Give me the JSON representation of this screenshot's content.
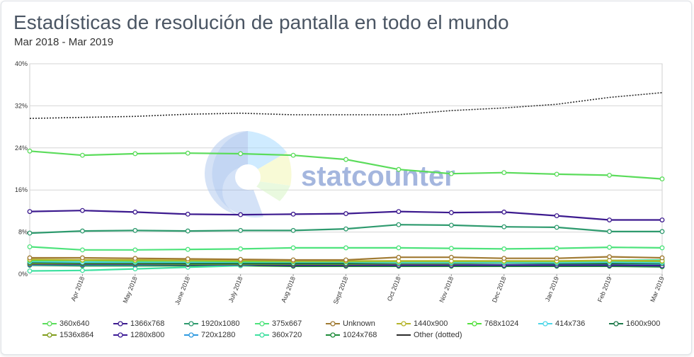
{
  "title": "Estadísticas de resolución de pantalla en todo el mundo",
  "subtitle": "Mar 2018 - Mar 2019",
  "watermark": "statcounter",
  "chart_data": {
    "type": "line",
    "categories": [
      "Mar 2018",
      "Apr 2018",
      "May 2018",
      "June 2018",
      "July 2018",
      "Aug 2018",
      "Sept 2018",
      "Oct 2018",
      "Nov 2018",
      "Dec 2018",
      "Jan 2019",
      "Feb 2019",
      "Mar 2019"
    ],
    "x_tick_labels": [
      "Apr 2018",
      "May 2018",
      "June 2018",
      "July 2018",
      "Aug 2018",
      "Sept 2018",
      "Oct 2018",
      "Nov 2018",
      "Dec 2018",
      "Jan 2019",
      "Feb 2019",
      "Mar 2019"
    ],
    "y_tick_labels": [
      "0%",
      "8%",
      "16%",
      "24%",
      "32%",
      "40%"
    ],
    "ylim": [
      0,
      40
    ],
    "y_unit": "%",
    "grid": true,
    "legend_position": "bottom",
    "series": [
      {
        "name": "360x640",
        "color": "#5bdc5b",
        "dotted": false,
        "markers": true,
        "values": [
          23.4,
          22.6,
          22.9,
          23.0,
          22.9,
          22.6,
          21.8,
          19.9,
          19.1,
          19.3,
          19.0,
          18.8,
          18.1
        ]
      },
      {
        "name": "1366x768",
        "color": "#3d1b8f",
        "dotted": false,
        "markers": true,
        "values": [
          11.9,
          12.1,
          11.8,
          11.4,
          11.3,
          11.4,
          11.5,
          11.9,
          11.7,
          11.8,
          11.1,
          10.3,
          10.3
        ]
      },
      {
        "name": "1920x1080",
        "color": "#2e9a6e",
        "dotted": false,
        "markers": true,
        "values": [
          7.8,
          8.2,
          8.3,
          8.2,
          8.3,
          8.3,
          8.6,
          9.4,
          9.3,
          9.0,
          8.9,
          8.1,
          8.1
        ]
      },
      {
        "name": "375x667",
        "color": "#4ee37c",
        "dotted": false,
        "markers": true,
        "values": [
          5.2,
          4.6,
          4.6,
          4.7,
          4.8,
          5.0,
          5.0,
          5.0,
          4.9,
          4.8,
          4.9,
          5.1,
          5.0
        ]
      },
      {
        "name": "Unknown",
        "color": "#a07a32",
        "dotted": false,
        "markers": true,
        "values": [
          3.1,
          3.1,
          3.0,
          2.9,
          2.8,
          2.7,
          2.7,
          3.2,
          3.2,
          3.0,
          3.0,
          3.3,
          3.1
        ]
      },
      {
        "name": "1440x900",
        "color": "#b5b52c",
        "dotted": false,
        "markers": true,
        "values": [
          2.8,
          2.7,
          2.7,
          2.6,
          2.6,
          2.5,
          2.5,
          2.5,
          2.5,
          2.5,
          2.5,
          2.6,
          2.5
        ]
      },
      {
        "name": "768x1024",
        "color": "#55e03f",
        "dotted": false,
        "markers": true,
        "values": [
          2.6,
          2.6,
          2.5,
          2.5,
          2.4,
          2.4,
          2.4,
          2.4,
          2.4,
          2.4,
          2.4,
          2.5,
          2.4
        ]
      },
      {
        "name": "414x736",
        "color": "#4fd6e8",
        "dotted": false,
        "markers": true,
        "values": [
          2.4,
          2.3,
          2.3,
          2.3,
          2.3,
          2.3,
          2.3,
          2.2,
          2.2,
          2.2,
          2.2,
          2.3,
          2.2
        ]
      },
      {
        "name": "1600x900",
        "color": "#1f7a4b",
        "dotted": false,
        "markers": true,
        "values": [
          2.2,
          2.1,
          2.1,
          2.0,
          2.0,
          2.0,
          2.0,
          2.1,
          2.1,
          2.1,
          2.0,
          2.0,
          2.0
        ]
      },
      {
        "name": "1536x864",
        "color": "#7f9c1a",
        "dotted": false,
        "markers": true,
        "values": [
          2.0,
          2.0,
          2.0,
          1.9,
          1.9,
          1.9,
          1.9,
          2.0,
          2.0,
          2.1,
          2.1,
          2.1,
          2.0
        ]
      },
      {
        "name": "1280x800",
        "color": "#3c1a96",
        "dotted": false,
        "markers": true,
        "values": [
          1.9,
          1.9,
          1.9,
          1.8,
          1.8,
          1.7,
          1.7,
          1.7,
          1.7,
          1.7,
          1.7,
          1.7,
          1.6
        ]
      },
      {
        "name": "720x1280",
        "color": "#2f9ae0",
        "dotted": false,
        "markers": true,
        "values": [
          1.8,
          1.8,
          1.8,
          1.8,
          1.8,
          1.8,
          1.8,
          1.7,
          1.7,
          1.7,
          1.7,
          1.7,
          1.7
        ]
      },
      {
        "name": "360x720",
        "color": "#3fe0a0",
        "dotted": false,
        "markers": true,
        "values": [
          0.6,
          0.7,
          1.0,
          1.3,
          1.6,
          2.1,
          2.2,
          2.0,
          2.2,
          2.3,
          2.4,
          2.6,
          2.7
        ]
      },
      {
        "name": "1024x768",
        "color": "#1e8c3a",
        "dotted": false,
        "markers": true,
        "values": [
          1.7,
          1.6,
          1.6,
          1.6,
          1.6,
          1.5,
          1.5,
          1.5,
          1.5,
          1.5,
          1.5,
          1.5,
          1.4
        ]
      },
      {
        "name": "Other (dotted)",
        "color": "#2b2b2b",
        "dotted": true,
        "markers": false,
        "values": [
          29.6,
          29.8,
          30.0,
          30.4,
          30.6,
          30.3,
          30.3,
          30.3,
          31.1,
          31.6,
          32.3,
          33.6,
          34.5
        ]
      }
    ]
  }
}
